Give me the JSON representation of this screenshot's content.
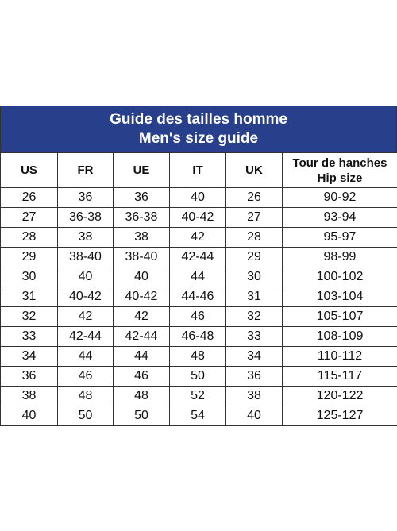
{
  "header": {
    "title": [
      "Guide des tailles homme",
      "Men's size guide"
    ]
  },
  "table": {
    "columns": [
      [
        "US"
      ],
      [
        "FR"
      ],
      [
        "UE"
      ],
      [
        "IT"
      ],
      [
        "UK"
      ],
      [
        "Tour de hanches",
        "Hip size"
      ]
    ],
    "rows": [
      [
        26,
        36,
        36,
        40,
        26,
        "90-92"
      ],
      [
        27,
        "36-38",
        "36-38",
        "40-42",
        27,
        "93-94"
      ],
      [
        28,
        38,
        38,
        42,
        28,
        "95-97"
      ],
      [
        29,
        "38-40",
        "38-40",
        "42-44",
        29,
        "98-99"
      ],
      [
        30,
        40,
        40,
        44,
        30,
        "100-102"
      ],
      [
        31,
        "40-42",
        "40-42",
        "44-46",
        31,
        "103-104"
      ],
      [
        32,
        42,
        42,
        46,
        32,
        "105-107"
      ],
      [
        33,
        "42-44",
        "42-44",
        "46-48",
        33,
        "108-109"
      ],
      [
        34,
        44,
        44,
        48,
        34,
        "110-112"
      ],
      [
        36,
        46,
        46,
        50,
        36,
        "115-117"
      ],
      [
        38,
        48,
        48,
        52,
        38,
        "120-122"
      ],
      [
        40,
        50,
        50,
        54,
        40,
        "125-127"
      ]
    ]
  }
}
